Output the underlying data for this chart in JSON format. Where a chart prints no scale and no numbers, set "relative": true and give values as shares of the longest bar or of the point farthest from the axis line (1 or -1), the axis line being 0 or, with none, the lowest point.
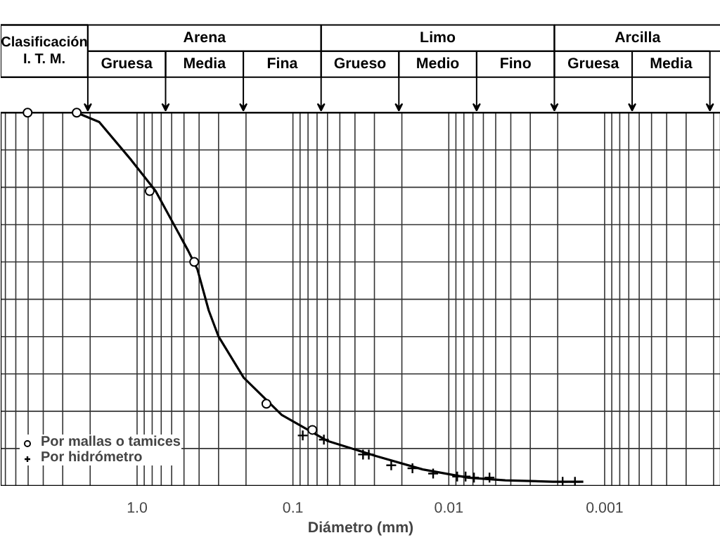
{
  "chart_data": {
    "type": "line",
    "relative": true,
    "xlabel": "Diámetro (mm)",
    "log": "x",
    "xlim": [
      7.5,
      0.00018
    ],
    "xticks": [
      {
        "value": 1,
        "label": "1.0"
      },
      0.1,
      0.01,
      0.001
    ],
    "tick_labels": "x",
    "grid": true,
    "legend": "bottom left",
    "annotations": [
      "Clasificación\nI. T. M.",
      "Arena",
      "Limo",
      "Arcilla",
      "Gruesa",
      "Media",
      "Fina",
      "Grueso",
      "Medio",
      "Fino",
      "Gruesa",
      "Media"
    ],
    "series": [
      {
        "color": "#000000",
        "line_style": "solid",
        "marker": "none",
        "x": [
          2.44,
          1.75,
          1.09,
          0.76,
          0.47,
          0.41,
          0.347,
          0.3,
          0.207,
          0.118,
          0.0597,
          0.0294,
          0.0147,
          0.0075,
          0.00434,
          0.00215,
          0.00137
        ],
        "values": [
          1.0,
          0.975,
          0.873,
          0.79,
          0.63,
          0.58,
          0.47,
          0.4,
          0.29,
          0.19,
          0.12,
          0.08,
          0.044,
          0.022,
          0.015,
          0.011,
          0.011
        ]
      },
      {
        "type": "scatter",
        "name": "Por mallas o tamices",
        "color": "#000000",
        "marker": "circle",
        "x": [
          5.04,
          2.44,
          0.83,
          0.43,
          0.148,
          0.075
        ],
        "values": [
          1.0,
          1.0,
          0.79,
          0.6,
          0.22,
          0.15
        ]
      },
      {
        "type": "scatter",
        "name": "Por hidrómetro",
        "color": "#000000",
        "marker": "cross",
        "x": [
          0.0865,
          0.0633,
          0.0355,
          0.0326,
          0.0234,
          0.0171,
          0.0126,
          0.00883,
          0.0078,
          0.00689,
          0.00548,
          0.00186,
          0.00155
        ],
        "values": [
          0.135,
          0.124,
          0.084,
          0.084,
          0.055,
          0.047,
          0.033,
          0.025,
          0.025,
          0.022,
          0.022,
          0.011,
          0.011
        ]
      }
    ]
  }
}
